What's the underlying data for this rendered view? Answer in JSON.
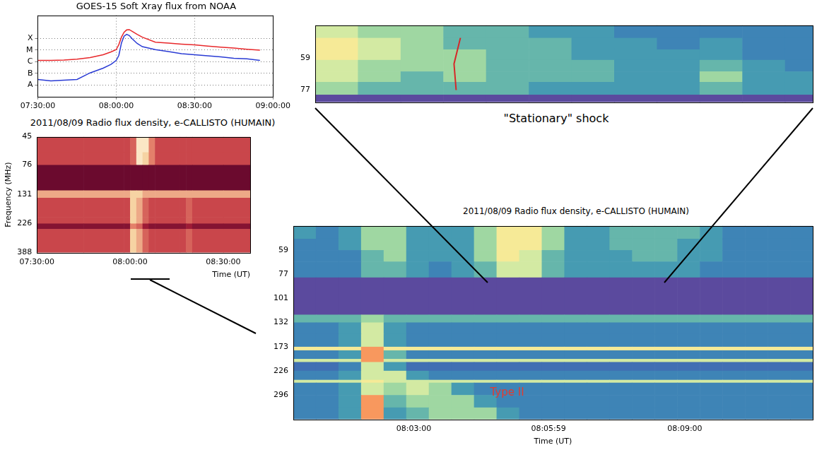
{
  "chart_data": [
    {
      "type": "line",
      "title": "GOES-15 Soft Xray flux from NOAA",
      "x": [
        "07:30:00",
        "07:35:00",
        "07:40:00",
        "07:45:00",
        "07:50:00",
        "07:55:00",
        "07:58:00",
        "08:00:00",
        "08:01:00",
        "08:02:00",
        "08:03:00",
        "08:04:00",
        "08:05:00",
        "08:06:00",
        "08:08:00",
        "08:10:00",
        "08:15:00",
        "08:20:00",
        "08:25:00",
        "08:30:00",
        "08:35:00",
        "08:40:00",
        "08:45:00",
        "08:50:00",
        "08:55:00"
      ],
      "series": [
        {
          "color": "#e8282b",
          "values": [
            1.3e-06,
            1.3e-06,
            1.4e-06,
            1.7e-06,
            2.3e-06,
            4e-06,
            7e-06,
            1.1e-05,
            3e-05,
            0.00013,
            0.00034,
            0.00055,
            0.00058,
            0.00043,
            0.00023,
            0.00013,
            4.8e-05,
            4e-05,
            3.3e-05,
            2.8e-05,
            2.2e-05,
            1.8e-05,
            1.5e-05,
            1.2e-05,
            1e-05
          ]
        },
        {
          "color": "#2a3bd4",
          "values": [
            3e-08,
            2.3e-08,
            2.6e-08,
            3e-08,
            1.1e-07,
            2.8e-07,
            6e-07,
            1.3e-06,
            3.5e-06,
            4e-05,
            0.00016,
            0.00023,
            0.00018,
            0.0001,
            3.8e-05,
            2e-05,
            1.1e-05,
            7.5e-06,
            5e-06,
            4e-06,
            3.2e-06,
            2.6e-06,
            2e-06,
            1.8e-06,
            1.3e-06
          ]
        }
      ],
      "xlim": [
        "07:30:00",
        "09:00:00"
      ],
      "xticks": [
        "07:30:00",
        "08:00:00",
        "08:30:00",
        "09:00:00"
      ],
      "ylim": [
        1e-09,
        0.01
      ],
      "yticks": [
        {
          "value": 1e-08,
          "label": "A"
        },
        {
          "value": 1e-07,
          "label": "B"
        },
        {
          "value": 1e-06,
          "label": "C"
        },
        {
          "value": 1e-05,
          "label": "M"
        },
        {
          "value": 0.0001,
          "label": "X"
        }
      ],
      "log": "y",
      "grid": true
    },
    {
      "type": "heatmap",
      "title": "2011/08/09  Radio flux density, e-CALLISTO (HUMAIN)",
      "x_label": "Time (UT)",
      "y_label": "Frequency (MHz)",
      "xlim": [
        "07:30:00",
        "08:38:40"
      ],
      "xticks": [
        "07:30:00",
        "08:00:00",
        "08:30:00"
      ],
      "ylim": [
        45,
        388
      ],
      "yticks": [
        45,
        76,
        131,
        226,
        388
      ],
      "log": "y",
      "x_edges": [
        "07:30:00",
        "07:45:00",
        "07:58:00",
        "08:00:00",
        "08:02:00",
        "08:04:00",
        "08:06:00",
        "08:08:00",
        "08:16:00",
        "08:18:00",
        "08:20:00",
        "08:30:00",
        "08:38:40"
      ],
      "y_edges": [
        45,
        60,
        76,
        122,
        140,
        200,
        226,
        250,
        388
      ],
      "zlim": [
        0,
        10
      ],
      "cells": [
        [
          4,
          4,
          4,
          5,
          9,
          9,
          6,
          4,
          4,
          4,
          4,
          4
        ],
        [
          4,
          4,
          4,
          5,
          9,
          8,
          6,
          4,
          4,
          4,
          4,
          4
        ],
        [
          0,
          0,
          0,
          0,
          0,
          0,
          0,
          0,
          0,
          0,
          0,
          0
        ],
        [
          7,
          7,
          7,
          8,
          8,
          7,
          7,
          7,
          7,
          7,
          7,
          7
        ],
        [
          4,
          4,
          4,
          8,
          7,
          5,
          4,
          4,
          4,
          5,
          4,
          4
        ],
        [
          4,
          4,
          4,
          8,
          7,
          5,
          4,
          4,
          4,
          5,
          4,
          4
        ],
        [
          1,
          1,
          1,
          6,
          5,
          2,
          1,
          1,
          1,
          2,
          1,
          1
        ],
        [
          4,
          4,
          4,
          8,
          7,
          5,
          4,
          4,
          4,
          5,
          4,
          4
        ]
      ]
    },
    {
      "type": "heatmap",
      "caption": "\"Stationary\" shock",
      "xlim": [
        "08:04:41",
        "08:08:34"
      ],
      "ylim": [
        45,
        85
      ],
      "yticks": [
        59,
        77
      ],
      "log": "y",
      "tick_labels": "y",
      "x_edges": [
        "08:04:41",
        "08:05:01",
        "08:05:21",
        "08:05:41",
        "08:06:01",
        "08:06:21",
        "08:06:41",
        "08:07:01",
        "08:07:21",
        "08:07:41",
        "08:08:01",
        "08:08:21",
        "08:08:34"
      ],
      "y_edges": [
        45,
        50,
        55,
        60,
        66,
        72,
        80,
        85
      ],
      "zlim": [
        0,
        10
      ],
      "cells": [
        [
          7,
          6,
          6,
          5,
          5,
          4,
          4,
          3,
          3,
          3,
          3,
          3
        ],
        [
          8,
          7,
          6,
          5,
          5,
          5,
          4,
          4,
          3,
          4,
          3,
          3
        ],
        [
          8,
          7,
          6,
          6,
          5,
          5,
          4,
          4,
          4,
          4,
          3,
          3
        ],
        [
          7,
          6,
          6,
          6,
          5,
          5,
          5,
          4,
          4,
          5,
          4,
          3
        ],
        [
          7,
          6,
          5,
          6,
          5,
          5,
          5,
          4,
          4,
          6,
          4,
          4
        ],
        [
          6,
          5,
          5,
          5,
          5,
          4,
          4,
          4,
          4,
          5,
          4,
          4
        ],
        [
          0,
          0,
          0,
          0,
          0,
          0,
          0,
          0,
          0,
          0,
          0,
          0
        ]
      ],
      "series": [
        {
          "color": "#d62728",
          "x": [
            "08:05:49",
            "08:05:46",
            "08:05:47"
          ],
          "values": [
            50,
            62,
            77
          ]
        }
      ]
    },
    {
      "type": "heatmap",
      "title": "2011/08/09  Radio flux density, e-CALLISTO (HUMAIN)",
      "x_label": "Time (UT)",
      "xlim": [
        "08:00:20",
        "08:11:50"
      ],
      "xticks": [
        "08:03:00",
        "08:05:59",
        "08:09:00"
      ],
      "ylim": [
        45,
        388
      ],
      "yticks": [
        59,
        77,
        101,
        132,
        173,
        226,
        296
      ],
      "log": "y",
      "x_edges": [
        "08:00:20",
        "08:00:50",
        "08:01:20",
        "08:01:50",
        "08:02:20",
        "08:02:50",
        "08:03:20",
        "08:03:50",
        "08:04:20",
        "08:04:50",
        "08:05:20",
        "08:05:50",
        "08:06:20",
        "08:06:50",
        "08:07:20",
        "08:07:50",
        "08:08:20",
        "08:08:50",
        "08:09:20",
        "08:09:50",
        "08:10:20",
        "08:10:50",
        "08:11:20",
        "08:11:50"
      ],
      "y_edges": [
        45,
        52,
        59,
        67,
        80,
        121,
        132,
        150,
        173,
        180,
        198,
        205,
        226,
        250,
        258,
        296,
        340,
        388
      ],
      "zlim": [
        0,
        10
      ],
      "cells": [
        [
          4,
          3,
          4,
          6,
          6,
          4,
          4,
          4,
          6,
          8,
          8,
          6,
          4,
          4,
          5,
          5,
          5,
          5,
          4,
          3,
          3,
          3,
          3
        ],
        [
          3,
          3,
          4,
          6,
          6,
          4,
          4,
          4,
          6,
          8,
          8,
          6,
          4,
          4,
          5,
          5,
          5,
          4,
          4,
          3,
          3,
          3,
          3
        ],
        [
          3,
          3,
          3,
          5,
          6,
          4,
          4,
          4,
          6,
          8,
          7,
          5,
          4,
          4,
          4,
          5,
          5,
          4,
          4,
          3,
          3,
          3,
          3
        ],
        [
          3,
          3,
          3,
          5,
          5,
          4,
          3,
          4,
          5,
          7,
          7,
          5,
          4,
          4,
          4,
          4,
          4,
          4,
          3,
          3,
          3,
          3,
          3
        ],
        [
          0,
          0,
          0,
          0,
          0,
          0,
          0,
          0,
          0,
          0,
          0,
          0,
          0,
          0,
          0,
          0,
          0,
          0,
          0,
          0,
          0,
          0,
          0
        ],
        [
          5,
          5,
          5,
          6,
          5,
          5,
          5,
          5,
          5,
          5,
          5,
          5,
          5,
          5,
          5,
          5,
          5,
          5,
          5,
          5,
          5,
          5,
          5
        ],
        [
          3,
          3,
          4,
          7,
          4,
          3,
          3,
          3,
          3,
          3,
          3,
          3,
          3,
          3,
          3,
          3,
          3,
          3,
          3,
          3,
          3,
          3,
          3
        ],
        [
          3,
          3,
          4,
          7,
          4,
          3,
          3,
          3,
          3,
          3,
          3,
          3,
          3,
          3,
          3,
          3,
          3,
          3,
          3,
          3,
          3,
          3,
          3
        ],
        [
          8,
          8,
          8,
          9,
          8,
          8,
          8,
          8,
          8,
          8,
          8,
          8,
          8,
          8,
          8,
          8,
          8,
          8,
          8,
          8,
          8,
          8,
          8
        ],
        [
          3,
          3,
          4,
          9,
          5,
          3,
          3,
          3,
          3,
          3,
          3,
          3,
          3,
          3,
          3,
          3,
          3,
          3,
          3,
          3,
          3,
          3,
          3
        ],
        [
          7,
          7,
          7,
          9,
          7,
          7,
          7,
          7,
          7,
          7,
          7,
          7,
          7,
          7,
          7,
          7,
          7,
          7,
          7,
          7,
          7,
          7,
          7
        ],
        [
          2,
          2,
          3,
          7,
          4,
          2,
          2,
          2,
          2,
          2,
          2,
          2,
          2,
          2,
          2,
          2,
          2,
          2,
          2,
          2,
          2,
          2,
          2
        ],
        [
          3,
          3,
          4,
          7,
          7,
          4,
          3,
          3,
          3,
          3,
          3,
          3,
          3,
          3,
          3,
          3,
          3,
          3,
          3,
          3,
          3,
          3,
          3
        ],
        [
          7,
          7,
          7,
          8,
          7,
          7,
          7,
          7,
          7,
          7,
          7,
          7,
          7,
          7,
          7,
          7,
          7,
          7,
          7,
          7,
          7,
          7,
          7
        ],
        [
          3,
          3,
          4,
          7,
          6,
          7,
          6,
          4,
          3,
          3,
          3,
          3,
          3,
          3,
          3,
          3,
          3,
          3,
          3,
          3,
          3,
          3,
          3
        ],
        [
          3,
          3,
          4,
          9,
          5,
          6,
          6,
          6,
          4,
          3,
          3,
          3,
          3,
          3,
          3,
          3,
          3,
          3,
          3,
          3,
          3,
          3,
          3
        ],
        [
          3,
          3,
          4,
          9,
          4,
          5,
          6,
          6,
          6,
          4,
          3,
          3,
          3,
          3,
          3,
          3,
          3,
          3,
          3,
          3,
          3,
          3,
          3
        ]
      ],
      "annotations": [
        {
          "text": "Type II",
          "x": "08:05:04",
          "y": 290,
          "color": "#e03c31"
        }
      ]
    }
  ]
}
